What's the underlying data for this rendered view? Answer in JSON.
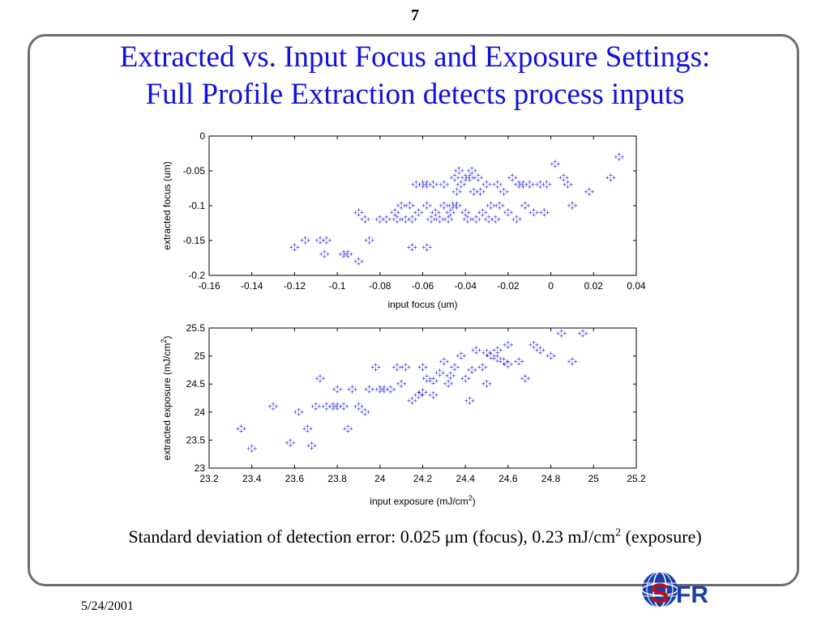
{
  "page_number": "7",
  "title_line1": "Extracted vs. Input Focus and Exposure Settings:",
  "title_line2": "Full Profile Extraction detects process inputs",
  "caption": {
    "prefix": "Standard deviation of detection error: 0.025 ",
    "mu": "μ",
    "middle": "m (focus), 0.23 mJ/cm",
    "sup": "2",
    "suffix": " (exposure)"
  },
  "date": "5/24/2001",
  "logo_text": "FR",
  "colors": {
    "title": "#1010e0",
    "marker": "#3030e0",
    "frame": "#6e6e6e"
  },
  "chart_data": [
    {
      "type": "scatter",
      "xlabel": "input focus (um)",
      "ylabel": "extracted focus (um)",
      "xlim": [
        -0.16,
        0.04
      ],
      "ylim": [
        -0.2,
        0
      ],
      "xticks": [
        "-0.16",
        "-0.14",
        "-0.12",
        "-0.1",
        "-0.08",
        "-0.06",
        "-0.04",
        "-0.02",
        "0",
        "0.02",
        "0.04"
      ],
      "yticks": [
        "0",
        "-0.05",
        "-0.1",
        "-0.15",
        "-0.2"
      ],
      "marker": "+",
      "points": [
        [
          -0.12,
          -0.16
        ],
        [
          -0.115,
          -0.15
        ],
        [
          -0.108,
          -0.15
        ],
        [
          -0.105,
          -0.15
        ],
        [
          -0.106,
          -0.17
        ],
        [
          -0.097,
          -0.17
        ],
        [
          -0.095,
          -0.17
        ],
        [
          -0.09,
          -0.18
        ],
        [
          -0.09,
          -0.11
        ],
        [
          -0.087,
          -0.12
        ],
        [
          -0.085,
          -0.15
        ],
        [
          -0.08,
          -0.12
        ],
        [
          -0.077,
          -0.12
        ],
        [
          -0.073,
          -0.11
        ],
        [
          -0.07,
          -0.1
        ],
        [
          -0.068,
          -0.12
        ],
        [
          -0.065,
          -0.12
        ],
        [
          -0.063,
          -0.07
        ],
        [
          -0.06,
          -0.07
        ],
        [
          -0.058,
          -0.07
        ],
        [
          -0.055,
          -0.07
        ],
        [
          -0.065,
          -0.16
        ],
        [
          -0.058,
          -0.16
        ],
        [
          -0.058,
          -0.1
        ],
        [
          -0.056,
          -0.12
        ],
        [
          -0.054,
          -0.11
        ],
        [
          -0.052,
          -0.12
        ],
        [
          -0.05,
          -0.1
        ],
        [
          -0.048,
          -0.12
        ],
        [
          -0.046,
          -0.1
        ],
        [
          -0.045,
          -0.06
        ],
        [
          -0.043,
          -0.05
        ],
        [
          -0.042,
          -0.07
        ],
        [
          -0.04,
          -0.11
        ],
        [
          -0.038,
          -0.06
        ],
        [
          -0.037,
          -0.05
        ],
        [
          -0.036,
          -0.08
        ],
        [
          -0.034,
          -0.06
        ],
        [
          -0.032,
          -0.11
        ],
        [
          -0.03,
          -0.07
        ],
        [
          -0.028,
          -0.1
        ],
        [
          -0.026,
          -0.12
        ],
        [
          -0.025,
          -0.07
        ],
        [
          -0.022,
          -0.08
        ],
        [
          -0.02,
          -0.11
        ],
        [
          -0.018,
          -0.06
        ],
        [
          -0.015,
          -0.07
        ],
        [
          -0.012,
          -0.1
        ],
        [
          -0.01,
          -0.07
        ],
        [
          -0.008,
          -0.11
        ],
        [
          -0.005,
          -0.07
        ],
        [
          -0.002,
          -0.07
        ],
        [
          -0.003,
          -0.11
        ],
        [
          0.002,
          -0.04
        ],
        [
          0.006,
          -0.06
        ],
        [
          0.008,
          -0.07
        ],
        [
          0.01,
          -0.1
        ],
        [
          0.018,
          -0.08
        ],
        [
          0.028,
          -0.06
        ],
        [
          0.032,
          -0.03
        ],
        [
          -0.05,
          -0.07
        ],
        [
          -0.047,
          -0.11
        ],
        [
          -0.044,
          -0.1
        ],
        [
          -0.04,
          -0.06
        ],
        [
          -0.035,
          -0.12
        ],
        [
          -0.033,
          -0.08
        ],
        [
          -0.029,
          -0.12
        ],
        [
          -0.024,
          -0.1
        ],
        [
          -0.016,
          -0.12
        ],
        [
          -0.013,
          -0.07
        ],
        [
          -0.062,
          -0.11
        ],
        [
          -0.072,
          -0.12
        ],
        [
          -0.066,
          -0.1
        ],
        [
          -0.044,
          -0.08
        ],
        [
          -0.039,
          -0.12
        ]
      ]
    },
    {
      "type": "scatter",
      "xlabel": "input exposure (mJ/cm",
      "xlabel_sup": "2",
      "xlabel_end": ")",
      "ylabel": "extracted exposure (mJ/cm",
      "ylabel_sup": "2",
      "ylabel_end": ")",
      "xlim": [
        23.2,
        25.2
      ],
      "ylim": [
        23,
        25.5
      ],
      "xticks": [
        "23.2",
        "23.4",
        "23.6",
        "23.8",
        "24",
        "24.2",
        "24.4",
        "24.6",
        "24.8",
        "25",
        "25.2"
      ],
      "yticks": [
        "25.5",
        "25",
        "24.5",
        "24",
        "23.5",
        "23"
      ],
      "marker": "+",
      "points": [
        [
          23.35,
          23.7
        ],
        [
          23.4,
          23.35
        ],
        [
          23.5,
          24.1
        ],
        [
          23.58,
          23.45
        ],
        [
          23.62,
          24.0
        ],
        [
          23.66,
          23.7
        ],
        [
          23.68,
          23.4
        ],
        [
          23.7,
          24.1
        ],
        [
          23.72,
          24.6
        ],
        [
          23.75,
          24.1
        ],
        [
          23.78,
          24.1
        ],
        [
          23.8,
          24.4
        ],
        [
          23.8,
          24.1
        ],
        [
          23.83,
          24.1
        ],
        [
          23.85,
          23.7
        ],
        [
          23.87,
          24.4
        ],
        [
          23.9,
          24.1
        ],
        [
          23.93,
          24.0
        ],
        [
          23.95,
          24.4
        ],
        [
          23.98,
          24.8
        ],
        [
          24.0,
          24.4
        ],
        [
          24.02,
          24.4
        ],
        [
          24.05,
          24.4
        ],
        [
          24.08,
          24.8
        ],
        [
          24.1,
          24.5
        ],
        [
          24.12,
          24.8
        ],
        [
          24.15,
          24.2
        ],
        [
          24.18,
          24.3
        ],
        [
          24.2,
          24.8
        ],
        [
          24.22,
          24.6
        ],
        [
          24.25,
          24.3
        ],
        [
          24.28,
          24.7
        ],
        [
          24.3,
          24.9
        ],
        [
          24.32,
          24.5
        ],
        [
          24.35,
          24.8
        ],
        [
          24.38,
          25.0
        ],
        [
          24.4,
          24.6
        ],
        [
          24.42,
          24.2
        ],
        [
          24.45,
          25.1
        ],
        [
          24.48,
          24.8
        ],
        [
          24.5,
          24.5
        ],
        [
          24.52,
          25.0
        ],
        [
          24.55,
          25.1
        ],
        [
          24.58,
          24.9
        ],
        [
          24.6,
          25.2
        ],
        [
          24.65,
          24.9
        ],
        [
          24.68,
          24.6
        ],
        [
          24.72,
          25.2
        ],
        [
          24.75,
          25.1
        ],
        [
          24.8,
          25.0
        ],
        [
          24.85,
          25.4
        ],
        [
          24.9,
          24.9
        ],
        [
          24.95,
          25.4
        ],
        [
          24.25,
          24.55
        ],
        [
          24.33,
          24.65
        ],
        [
          24.43,
          24.75
        ],
        [
          24.5,
          25.05
        ],
        [
          24.55,
          24.95
        ],
        [
          24.6,
          24.85
        ],
        [
          24.2,
          24.35
        ]
      ]
    }
  ]
}
